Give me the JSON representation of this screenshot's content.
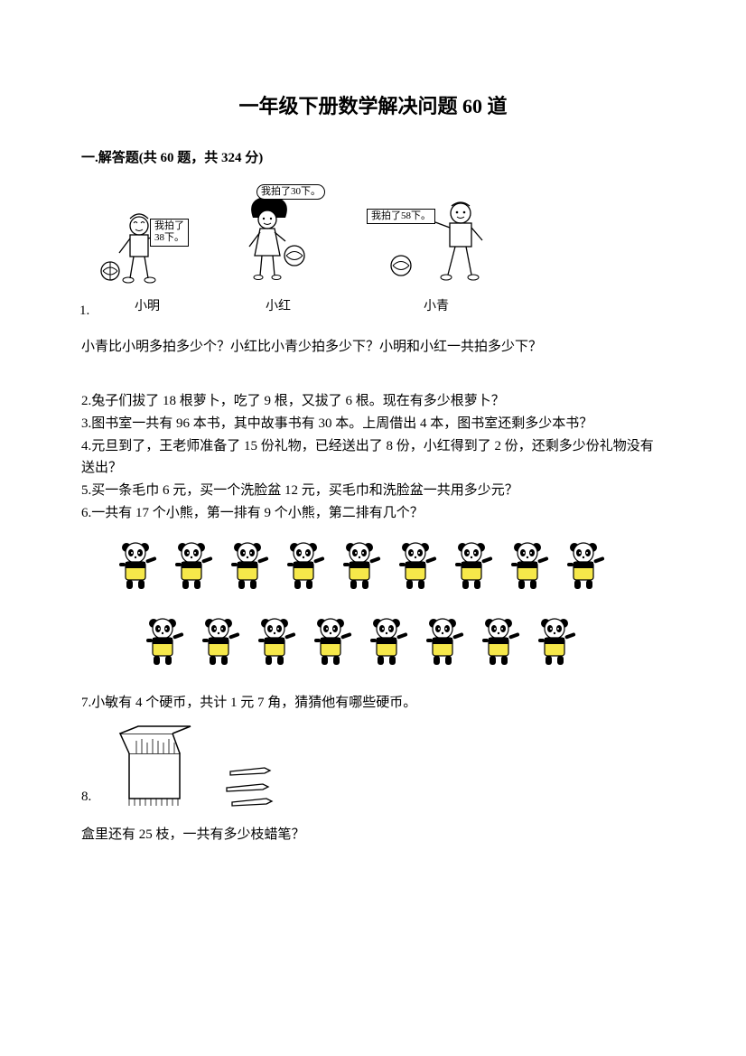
{
  "title": "一年级下册数学解决问题 60 道",
  "section_header": "一.解答题(共 60 题，共 324 分)",
  "q1": {
    "number": "1.",
    "kids": [
      {
        "name": "小明",
        "bubble": "我拍了\n38下。"
      },
      {
        "name": "小红",
        "bubble": "我拍了30下。"
      },
      {
        "name": "小青",
        "bubble": "我拍了58下。"
      }
    ],
    "question": "小青比小明多拍多少个？小红比小青少拍多少下？小明和小红一共拍多少下？"
  },
  "q2": "2.兔子们拔了 18 根萝卜，吃了 9 根，又拔了 6 根。现在有多少根萝卜？",
  "q3": "3.图书室一共有 96 本书，其中故事书有 30 本。上周借出 4 本，图书室还剩多少本书？",
  "q4": "4.元旦到了，王老师准备了 15 份礼物，已经送出了 8 份，小红得到了 2 份，还剩多少份礼物没有送出？",
  "q5": "5.买一条毛巾 6 元，买一个洗脸盆 12 元，买毛巾和洗脸盆一共用多少元？",
  "q6": "6.一共有 17 个小熊，第一排有 9 个小熊，第二排有几个？",
  "pandas": {
    "row1_count": 9,
    "row2_count": 8,
    "body_color": "#f6e84a",
    "stroke": "#000000"
  },
  "q7": "7.小敏有 4 个硬币，共计 1 元 7 角，猜猜他有哪些硬币。",
  "q8": {
    "number": "8.",
    "text": "盒里还有 25 枝，一共有多少枝蜡笔？",
    "crayon_count_outside": 3
  },
  "colors": {
    "text": "#000000",
    "bg": "#ffffff",
    "panda_body": "#f6e84a"
  },
  "typography": {
    "title_fontsize": 22,
    "body_fontsize": 15,
    "font_family": "SimSun"
  }
}
